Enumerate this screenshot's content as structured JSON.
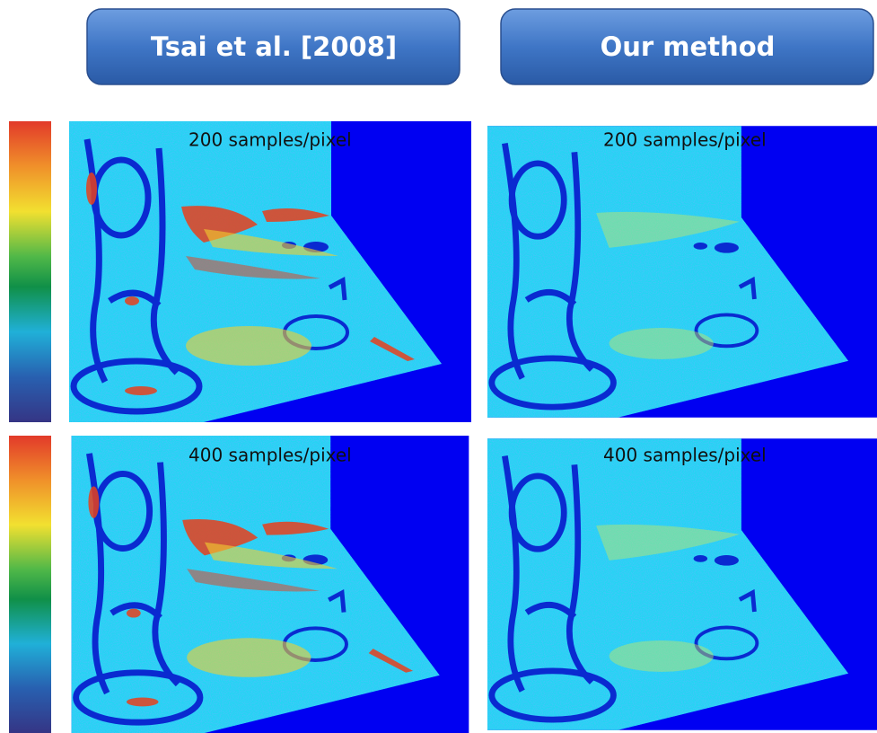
{
  "headers": [
    "Tsai et al. [2008]",
    "Our method"
  ],
  "rows": [
    {
      "panels": [
        {
          "label": "200 samples/pixel"
        },
        {
          "label": "200 samples/pixel"
        }
      ]
    },
    {
      "panels": [
        {
          "label": "400 samples/pixel"
        },
        {
          "label": "400 samples/pixel"
        }
      ]
    }
  ]
}
